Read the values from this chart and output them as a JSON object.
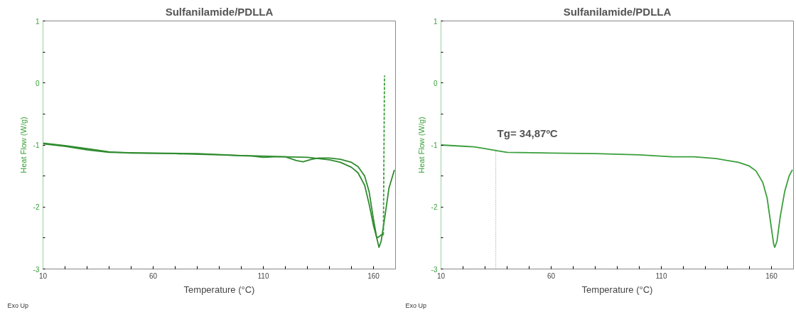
{
  "chart_data": [
    {
      "type": "line",
      "title": "Sulfanilamide/PDLLA",
      "xlabel": "Temperature (°C)",
      "ylabel": "Heat Flow (W/g)",
      "xlim": [
        10,
        170
      ],
      "ylim": [
        -3,
        1
      ],
      "xticks": [
        10,
        {
          "value": 20,
          "label": null
        },
        {
          "value": 30,
          "label": null
        },
        {
          "value": 40,
          "label": null
        },
        {
          "value": 50,
          "label": null
        },
        60,
        {
          "value": 70,
          "label": null
        },
        {
          "value": 80,
          "label": null
        },
        {
          "value": 90,
          "label": null
        },
        {
          "value": 100,
          "label": null
        },
        110,
        {
          "value": 120,
          "label": null
        },
        {
          "value": 130,
          "label": null
        },
        {
          "value": 140,
          "label": null
        },
        {
          "value": 150,
          "label": null
        },
        160
      ],
      "yticks": [
        -3,
        {
          "value": -2.5,
          "label": null
        },
        -2,
        {
          "value": -1.5,
          "label": null
        },
        -1,
        {
          "value": -0.5,
          "label": null
        },
        0,
        {
          "value": 0.5,
          "label": null
        },
        1
      ],
      "grid": false,
      "marker": "none",
      "line_style": "solid",
      "series": [
        {
          "color": "#2e8b2e",
          "x": [
            10,
            20,
            30,
            40,
            50,
            70,
            90,
            105,
            110,
            115,
            120,
            130,
            140,
            145,
            150,
            153,
            156,
            158,
            160,
            161.5,
            162.5,
            163.5,
            164.5
          ],
          "values": [
            -0.97,
            -1.01,
            -1.06,
            -1.11,
            -1.13,
            -1.14,
            -1.16,
            -1.18,
            -1.2,
            -1.19,
            -1.19,
            -1.2,
            -1.24,
            -1.28,
            -1.36,
            -1.45,
            -1.65,
            -1.95,
            -2.3,
            -2.5,
            -2.48,
            -2.45,
            -2.45
          ]
        },
        {
          "color": "#2e8b2e",
          "x": [
            10,
            20,
            30,
            40,
            60,
            80,
            100,
            110,
            120,
            125,
            128,
            132,
            135,
            140,
            145,
            150,
            153,
            156,
            158,
            160,
            161.5,
            162.5,
            163.5,
            165,
            167,
            169.5
          ],
          "values": [
            -0.98,
            -1.02,
            -1.08,
            -1.12,
            -1.13,
            -1.14,
            -1.17,
            -1.18,
            -1.19,
            -1.25,
            -1.27,
            -1.23,
            -1.21,
            -1.21,
            -1.23,
            -1.28,
            -1.35,
            -1.5,
            -1.75,
            -2.2,
            -2.5,
            -2.65,
            -2.55,
            -2.2,
            -1.7,
            -1.4
          ]
        },
        {
          "color": "#3aa03a",
          "line_style": "dashed",
          "x": [
            164.5,
            165
          ],
          "values": [
            -2.45,
            0.12
          ]
        }
      ],
      "annotations": [
        "Exo Up"
      ]
    },
    {
      "type": "line",
      "title": "Sulfanilamide/PDLLA",
      "xlabel": "Temperature (°C)",
      "ylabel": "Heat Flow (W/g)",
      "xlim": [
        10,
        170
      ],
      "ylim": [
        -3,
        1
      ],
      "xticks": [
        10,
        {
          "value": 20,
          "label": null
        },
        {
          "value": 30,
          "label": null
        },
        {
          "value": 40,
          "label": null
        },
        {
          "value": 50,
          "label": null
        },
        60,
        {
          "value": 70,
          "label": null
        },
        {
          "value": 80,
          "label": null
        },
        {
          "value": 90,
          "label": null
        },
        {
          "value": 100,
          "label": null
        },
        110,
        {
          "value": 120,
          "label": null
        },
        {
          "value": 130,
          "label": null
        },
        {
          "value": 140,
          "label": null
        },
        {
          "value": 150,
          "label": null
        },
        160
      ],
      "yticks": [
        -3,
        {
          "value": -2.5,
          "label": null
        },
        -2,
        {
          "value": -1.5,
          "label": null
        },
        -1,
        {
          "value": -0.5,
          "label": null
        },
        0,
        {
          "value": 0.5,
          "label": null
        },
        1
      ],
      "grid": false,
      "marker": "none",
      "line_style": "solid",
      "series": [
        {
          "color": "#3a9e3a",
          "x": [
            10,
            20,
            25,
            30,
            35,
            40,
            60,
            80,
            100,
            115,
            125,
            135,
            145,
            150,
            153,
            156,
            158,
            160,
            161,
            161.5,
            162.5,
            164,
            166,
            168,
            169.5
          ],
          "values": [
            -1.0,
            -1.02,
            -1.03,
            -1.06,
            -1.09,
            -1.12,
            -1.13,
            -1.14,
            -1.16,
            -1.19,
            -1.19,
            -1.22,
            -1.28,
            -1.34,
            -1.42,
            -1.6,
            -1.85,
            -2.35,
            -2.6,
            -2.65,
            -2.55,
            -2.15,
            -1.75,
            -1.5,
            -1.4
          ]
        }
      ],
      "ref_lines": [
        {
          "axis": "x",
          "value": 34.87,
          "color": "#888888",
          "line_style": "dotted"
        }
      ],
      "annotations": [
        {
          "text": "Tg= 34,87ºC",
          "x": 34.87,
          "y": -1.07
        },
        "Exo Up"
      ]
    }
  ]
}
